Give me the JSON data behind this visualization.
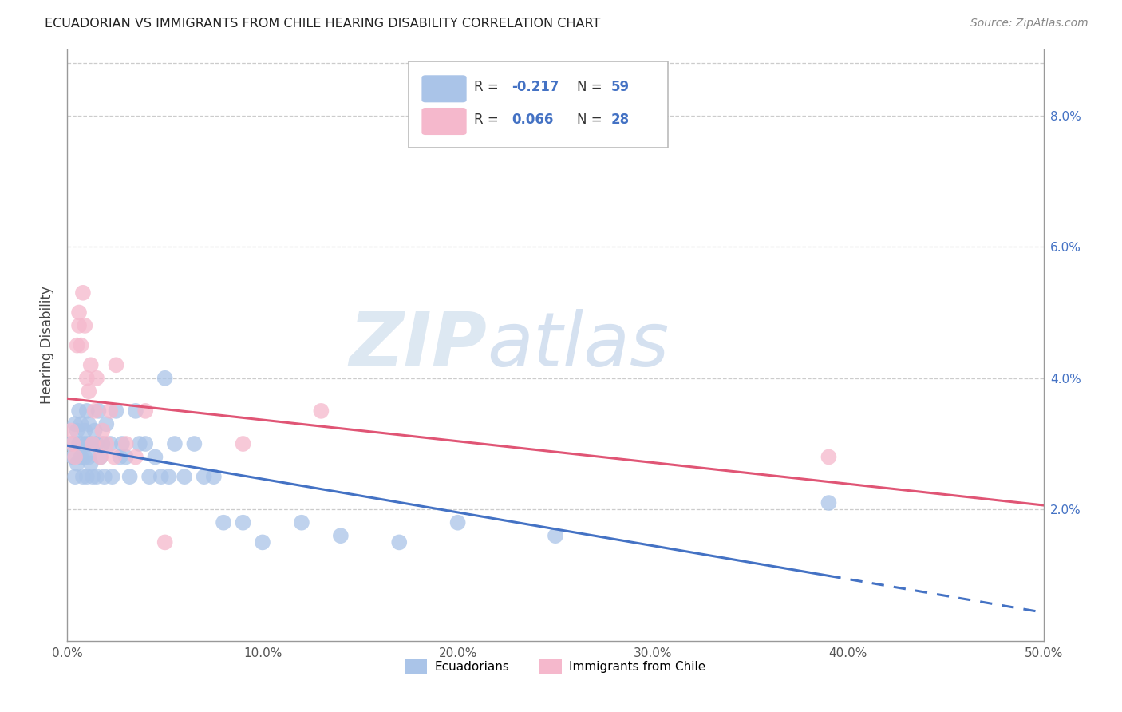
{
  "title": "ECUADORIAN VS IMMIGRANTS FROM CHILE HEARING DISABILITY CORRELATION CHART",
  "source_text": "Source: ZipAtlas.com",
  "ylabel": "Hearing Disability",
  "xlim": [
    0.0,
    0.5
  ],
  "ylim": [
    0.0,
    0.09
  ],
  "xtick_labels": [
    "0.0%",
    "10.0%",
    "20.0%",
    "30.0%",
    "40.0%",
    "50.0%"
  ],
  "xtick_vals": [
    0.0,
    0.1,
    0.2,
    0.3,
    0.4,
    0.5
  ],
  "ytick_labels": [
    "2.0%",
    "4.0%",
    "6.0%",
    "8.0%"
  ],
  "ytick_vals": [
    0.02,
    0.04,
    0.06,
    0.08
  ],
  "ecuadorians_color": "#aac4e8",
  "immigrants_color": "#f5b8cc",
  "trendline_blue_color": "#4472c4",
  "trendline_pink_color": "#e05575",
  "R_ecuadorians": -0.217,
  "N_ecuadorians": 59,
  "R_immigrants": 0.066,
  "N_immigrants": 28,
  "watermark_zip": "ZIP",
  "watermark_atlas": "atlas",
  "ecuadorians_x": [
    0.002,
    0.003,
    0.004,
    0.004,
    0.005,
    0.005,
    0.006,
    0.006,
    0.007,
    0.007,
    0.008,
    0.008,
    0.009,
    0.009,
    0.01,
    0.01,
    0.01,
    0.011,
    0.011,
    0.012,
    0.012,
    0.013,
    0.014,
    0.015,
    0.015,
    0.016,
    0.017,
    0.018,
    0.019,
    0.02,
    0.022,
    0.023,
    0.025,
    0.027,
    0.028,
    0.03,
    0.032,
    0.035,
    0.037,
    0.04,
    0.042,
    0.045,
    0.048,
    0.05,
    0.052,
    0.055,
    0.06,
    0.065,
    0.07,
    0.075,
    0.08,
    0.09,
    0.1,
    0.12,
    0.14,
    0.17,
    0.2,
    0.25,
    0.39
  ],
  "ecuadorians_y": [
    0.03,
    0.028,
    0.025,
    0.033,
    0.032,
    0.027,
    0.03,
    0.035,
    0.028,
    0.033,
    0.025,
    0.03,
    0.028,
    0.032,
    0.025,
    0.03,
    0.035,
    0.028,
    0.033,
    0.027,
    0.03,
    0.025,
    0.032,
    0.025,
    0.03,
    0.035,
    0.028,
    0.03,
    0.025,
    0.033,
    0.03,
    0.025,
    0.035,
    0.028,
    0.03,
    0.028,
    0.025,
    0.035,
    0.03,
    0.03,
    0.025,
    0.028,
    0.025,
    0.04,
    0.025,
    0.03,
    0.025,
    0.03,
    0.025,
    0.025,
    0.018,
    0.018,
    0.015,
    0.018,
    0.016,
    0.015,
    0.018,
    0.016,
    0.021
  ],
  "immigrants_x": [
    0.002,
    0.003,
    0.004,
    0.005,
    0.006,
    0.006,
    0.007,
    0.008,
    0.009,
    0.01,
    0.011,
    0.012,
    0.013,
    0.014,
    0.015,
    0.017,
    0.018,
    0.02,
    0.022,
    0.024,
    0.025,
    0.03,
    0.035,
    0.04,
    0.05,
    0.09,
    0.13,
    0.39
  ],
  "immigrants_y": [
    0.032,
    0.03,
    0.028,
    0.045,
    0.05,
    0.048,
    0.045,
    0.053,
    0.048,
    0.04,
    0.038,
    0.042,
    0.03,
    0.035,
    0.04,
    0.028,
    0.032,
    0.03,
    0.035,
    0.028,
    0.042,
    0.03,
    0.028,
    0.035,
    0.015,
    0.03,
    0.035,
    0.028
  ],
  "trendline_solid_end": 0.39,
  "legend_R1_text": "R = -0.217",
  "legend_N1_text": "N = 59",
  "legend_R2_text": "R = 0.066",
  "legend_N2_text": "N = 28"
}
